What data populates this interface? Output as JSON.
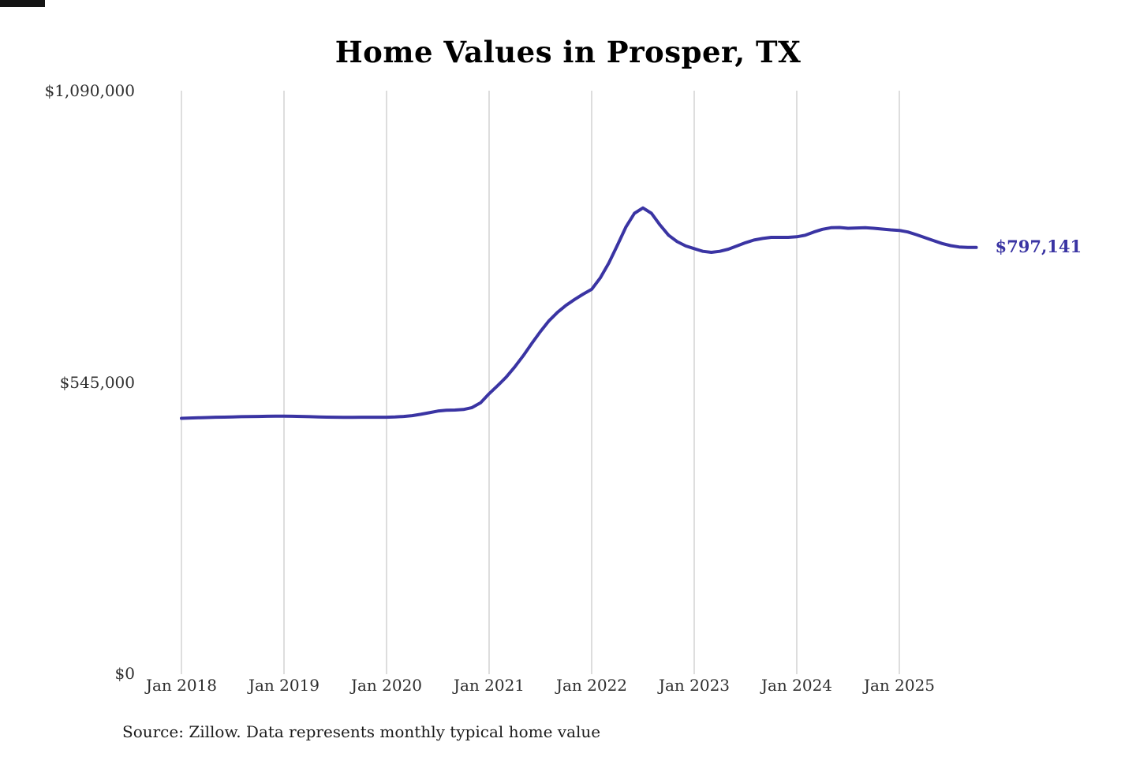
{
  "chart_data": {
    "type": "line",
    "title": "Home Values in Prosper, TX",
    "x_tick_labels": [
      "Jan 2018",
      "Jan 2019",
      "Jan 2020",
      "Jan 2021",
      "Jan 2022",
      "Jan 2023",
      "Jan 2024",
      "Jan 2025"
    ],
    "y_axis": {
      "labels": [
        "$1,090,000",
        "$545,000",
        "$0"
      ],
      "values": [
        1090000,
        545000,
        0
      ]
    },
    "ylim": [
      0,
      1090000
    ],
    "frequency": "monthly",
    "series_start": "Jan 2018",
    "values": [
      478000,
      478500,
      479000,
      479500,
      480000,
      480200,
      480500,
      481000,
      481200,
      481500,
      481800,
      482000,
      482000,
      481800,
      481500,
      481000,
      480500,
      480200,
      480000,
      479800,
      479800,
      480000,
      480000,
      480000,
      480000,
      480500,
      481500,
      483000,
      485500,
      488500,
      491500,
      493000,
      493500,
      494500,
      498000,
      507000,
      524000,
      539000,
      555000,
      574000,
      595000,
      618000,
      640000,
      660000,
      676000,
      689000,
      700000,
      710000,
      719000,
      740000,
      768000,
      801000,
      835000,
      861000,
      871000,
      861000,
      839000,
      820000,
      808000,
      800000,
      795000,
      790000,
      788000,
      790000,
      794000,
      800000,
      806000,
      811000,
      814000,
      816000,
      816000,
      816000,
      817000,
      820000,
      826000,
      831000,
      834000,
      834500,
      833000,
      833500,
      834000,
      833000,
      831500,
      830000,
      829000,
      826000,
      821000,
      815500,
      810000,
      804500,
      800500,
      798000,
      797300,
      797141
    ],
    "current_value": 797141,
    "current_value_label": "$797,141",
    "source_note": "Source: Zillow. Data represents monthly typical home value",
    "line_color": "#3a34a3",
    "grid_color": "#cbcbcb",
    "grid": "vertical-only",
    "legend": "none"
  }
}
